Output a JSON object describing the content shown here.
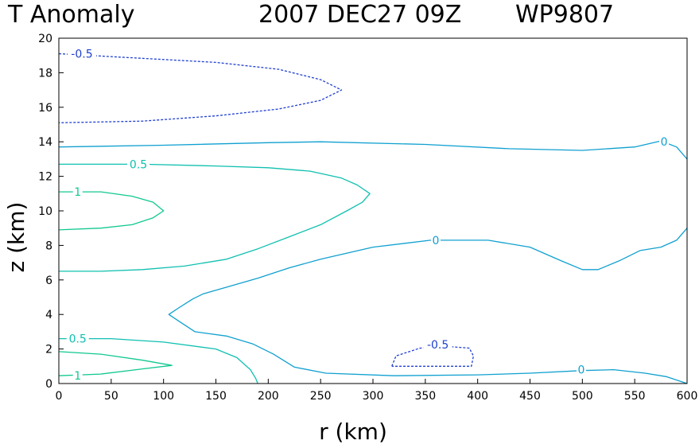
{
  "chart_data": {
    "type": "contour",
    "title_left": "T Anomaly",
    "title_date": "2007 DEC27 09Z",
    "title_id": "WP9807",
    "xlabel": "r (km)",
    "ylabel": "z (km)",
    "xlim": [
      0,
      600
    ],
    "ylim": [
      0,
      20
    ],
    "xticks": [
      0,
      50,
      100,
      150,
      200,
      250,
      300,
      350,
      400,
      450,
      500,
      550,
      600
    ],
    "yticks": [
      0,
      2,
      4,
      6,
      8,
      10,
      12,
      14,
      16,
      18,
      20
    ],
    "colors": {
      "neg_05": "#2040d0",
      "zero": "#10a0d0",
      "pos_05": "#10c0b0",
      "pos_1": "#10c890"
    },
    "contours": [
      {
        "level": -0.5,
        "dashed": true,
        "color_key": "neg_05",
        "points": [
          [
            0,
            19.1
          ],
          [
            60,
            18.9
          ],
          [
            150,
            18.6
          ],
          [
            210,
            18.2
          ],
          [
            250,
            17.6
          ],
          [
            270,
            17.0
          ],
          [
            250,
            16.4
          ],
          [
            210,
            15.9
          ],
          [
            150,
            15.5
          ],
          [
            80,
            15.2
          ],
          [
            0,
            15.1
          ]
        ],
        "labels": [
          {
            "text": "-0.5",
            "x": 22,
            "y": 19.1
          }
        ]
      },
      {
        "level": -0.5,
        "dashed": true,
        "color_key": "neg_05",
        "points": [
          [
            318,
            1.0
          ],
          [
            322,
            1.6
          ],
          [
            345,
            2.05
          ],
          [
            370,
            2.15
          ],
          [
            392,
            2.05
          ],
          [
            396,
            1.6
          ],
          [
            394,
            1.0
          ],
          [
            318,
            1.0
          ]
        ],
        "labels": [
          {
            "text": "-0.5",
            "x": 362,
            "y": 2.25
          }
        ]
      },
      {
        "level": 0,
        "dashed": false,
        "color_key": "zero",
        "points": [
          [
            0,
            13.7
          ],
          [
            100,
            13.8
          ],
          [
            200,
            13.95
          ],
          [
            250,
            14.0
          ],
          [
            350,
            13.85
          ],
          [
            430,
            13.6
          ],
          [
            500,
            13.5
          ],
          [
            550,
            13.7
          ],
          [
            575,
            14.05
          ],
          [
            590,
            13.7
          ],
          [
            600,
            13.0
          ]
        ],
        "labels": [
          {
            "text": "0",
            "x": 578,
            "y": 14.0
          }
        ]
      },
      {
        "level": 0,
        "dashed": false,
        "color_key": "zero",
        "points": [
          [
            600,
            9.0
          ],
          [
            590,
            8.3
          ],
          [
            575,
            7.9
          ],
          [
            555,
            7.7
          ],
          [
            535,
            7.1
          ],
          [
            515,
            6.6
          ],
          [
            500,
            6.6
          ],
          [
            480,
            7.1
          ],
          [
            450,
            7.9
          ],
          [
            410,
            8.3
          ],
          [
            355,
            8.3
          ],
          [
            300,
            7.9
          ],
          [
            250,
            7.2
          ],
          [
            220,
            6.7
          ],
          [
            190,
            6.1
          ],
          [
            150,
            5.4
          ],
          [
            138,
            5.2
          ],
          [
            128,
            4.9
          ],
          [
            115,
            4.4
          ],
          [
            105,
            4.0
          ],
          [
            115,
            3.6
          ],
          [
            130,
            3.0
          ],
          [
            160,
            2.75
          ],
          [
            185,
            2.3
          ],
          [
            205,
            1.7
          ],
          [
            225,
            0.95
          ],
          [
            255,
            0.6
          ],
          [
            320,
            0.45
          ],
          [
            400,
            0.5
          ],
          [
            450,
            0.6
          ],
          [
            500,
            0.75
          ],
          [
            530,
            0.8
          ],
          [
            560,
            0.6
          ],
          [
            580,
            0.4
          ],
          [
            600,
            0.0
          ]
        ],
        "labels": [
          {
            "text": "0",
            "x": 360,
            "y": 8.3
          },
          {
            "text": "0",
            "x": 499,
            "y": 0.8
          }
        ]
      },
      {
        "level": 0.5,
        "dashed": false,
        "color_key": "pos_05",
        "points": [
          [
            0,
            12.7
          ],
          [
            80,
            12.7
          ],
          [
            150,
            12.6
          ],
          [
            200,
            12.5
          ],
          [
            240,
            12.3
          ],
          [
            270,
            11.9
          ],
          [
            285,
            11.5
          ],
          [
            297,
            11.0
          ],
          [
            290,
            10.5
          ],
          [
            275,
            10.0
          ],
          [
            250,
            9.2
          ],
          [
            220,
            8.5
          ],
          [
            190,
            7.8
          ],
          [
            160,
            7.2
          ],
          [
            120,
            6.8
          ],
          [
            80,
            6.6
          ],
          [
            40,
            6.5
          ],
          [
            0,
            6.5
          ]
        ],
        "labels": [
          {
            "text": "0.5",
            "x": 76,
            "y": 12.7
          }
        ]
      },
      {
        "level": 0.5,
        "dashed": false,
        "color_key": "pos_05",
        "points": [
          [
            0,
            2.6
          ],
          [
            50,
            2.6
          ],
          [
            100,
            2.4
          ],
          [
            150,
            2.0
          ],
          [
            170,
            1.5
          ],
          [
            183,
            0.8
          ],
          [
            188,
            0.3
          ],
          [
            190,
            0.0
          ]
        ],
        "labels": [
          {
            "text": "0.5",
            "x": 18,
            "y": 2.6
          }
        ]
      },
      {
        "level": 1,
        "dashed": false,
        "color_key": "pos_1",
        "points": [
          [
            0,
            11.1
          ],
          [
            40,
            11.1
          ],
          [
            70,
            10.85
          ],
          [
            90,
            10.5
          ],
          [
            100,
            10.0
          ],
          [
            90,
            9.6
          ],
          [
            70,
            9.2
          ],
          [
            40,
            9.0
          ],
          [
            0,
            8.9
          ]
        ],
        "labels": [
          {
            "text": "1",
            "x": 18,
            "y": 11.1
          }
        ]
      },
      {
        "level": 1,
        "dashed": false,
        "color_key": "pos_1",
        "points": [
          [
            0,
            1.85
          ],
          [
            40,
            1.7
          ],
          [
            80,
            1.35
          ],
          [
            108,
            1.05
          ],
          [
            80,
            0.85
          ],
          [
            40,
            0.55
          ],
          [
            0,
            0.45
          ]
        ],
        "labels": [
          {
            "text": "1",
            "x": 18,
            "y": 0.45
          }
        ]
      }
    ]
  }
}
